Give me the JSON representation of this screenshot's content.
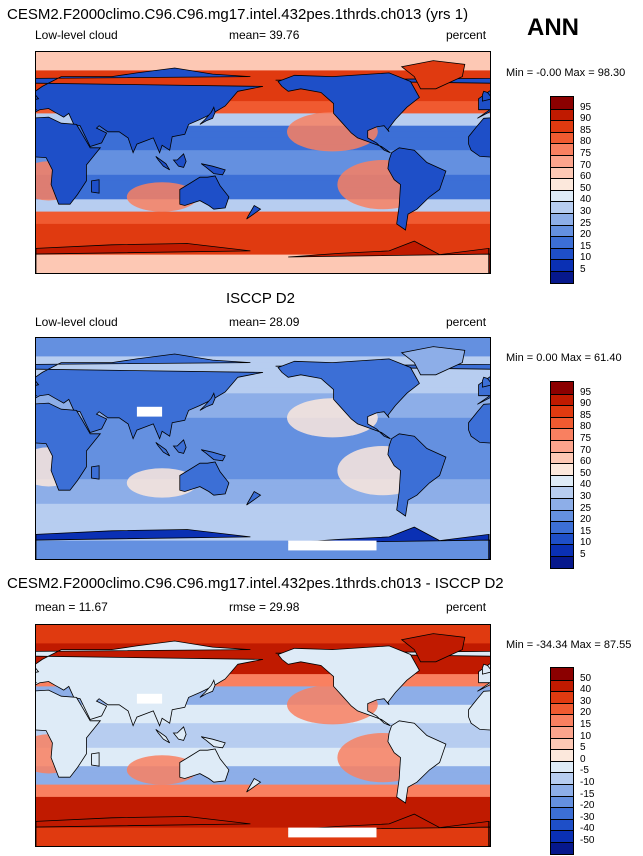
{
  "header": {
    "season": "ANN"
  },
  "panels": [
    {
      "title": "CESM2.F2000climo.C96.C96.mg17.intel.432pes.1thrds.ch013 (yrs 1)",
      "left_label": "Low-level cloud",
      "center_label": "mean=  39.76",
      "right_label": "percent",
      "range_label": "Min =  -0.00 Max =  98.30",
      "colorbar_levels": [
        "95",
        "90",
        "85",
        "80",
        "75",
        "70",
        "60",
        "50",
        "40",
        "30",
        "25",
        "20",
        "15",
        "10",
        "5"
      ],
      "colorbar_colors": [
        "#8b0000",
        "#c01a00",
        "#e03a10",
        "#f05a30",
        "#f98060",
        "#fca48c",
        "#fdc8b4",
        "#fce8dc",
        "#deebf7",
        "#b7cdf0",
        "#8daee8",
        "#6490e0",
        "#3c6fd6",
        "#1e4fc8",
        "#0a30b4",
        "#06188c"
      ],
      "map_style": "model"
    },
    {
      "title": "ISCCP D2",
      "left_label": "Low-level cloud",
      "center_label": "mean=  28.09",
      "right_label": "percent",
      "range_label": "Min =   0.00 Max =  61.40",
      "colorbar_levels": [
        "95",
        "90",
        "85",
        "80",
        "75",
        "70",
        "60",
        "50",
        "40",
        "30",
        "25",
        "20",
        "15",
        "10",
        "5"
      ],
      "colorbar_colors": [
        "#8b0000",
        "#c01a00",
        "#e03a10",
        "#f05a30",
        "#f98060",
        "#fca48c",
        "#fdc8b4",
        "#fce8dc",
        "#deebf7",
        "#b7cdf0",
        "#8daee8",
        "#6490e0",
        "#3c6fd6",
        "#1e4fc8",
        "#0a30b4",
        "#06188c"
      ],
      "map_style": "obs"
    },
    {
      "title": "CESM2.F2000climo.C96.C96.mg17.intel.432pes.1thrds.ch013 - ISCCP D2",
      "left_label": "mean =  11.67",
      "center_label": "rmse =  29.98",
      "right_label": "percent",
      "range_label": "Min = -34.34 Max =  87.55",
      "colorbar_levels": [
        "50",
        "40",
        "30",
        "20",
        "15",
        "10",
        "5",
        "0",
        "-5",
        "-10",
        "-15",
        "-20",
        "-30",
        "-40",
        "-50"
      ],
      "colorbar_colors": [
        "#8b0000",
        "#c01a00",
        "#e03a10",
        "#f05a30",
        "#f98060",
        "#fca48c",
        "#fdc8b4",
        "#fce8dc",
        "#deebf7",
        "#b7cdf0",
        "#8daee8",
        "#6490e0",
        "#3c6fd6",
        "#1e4fc8",
        "#0a30b4",
        "#06188c"
      ],
      "map_style": "diff"
    }
  ]
}
